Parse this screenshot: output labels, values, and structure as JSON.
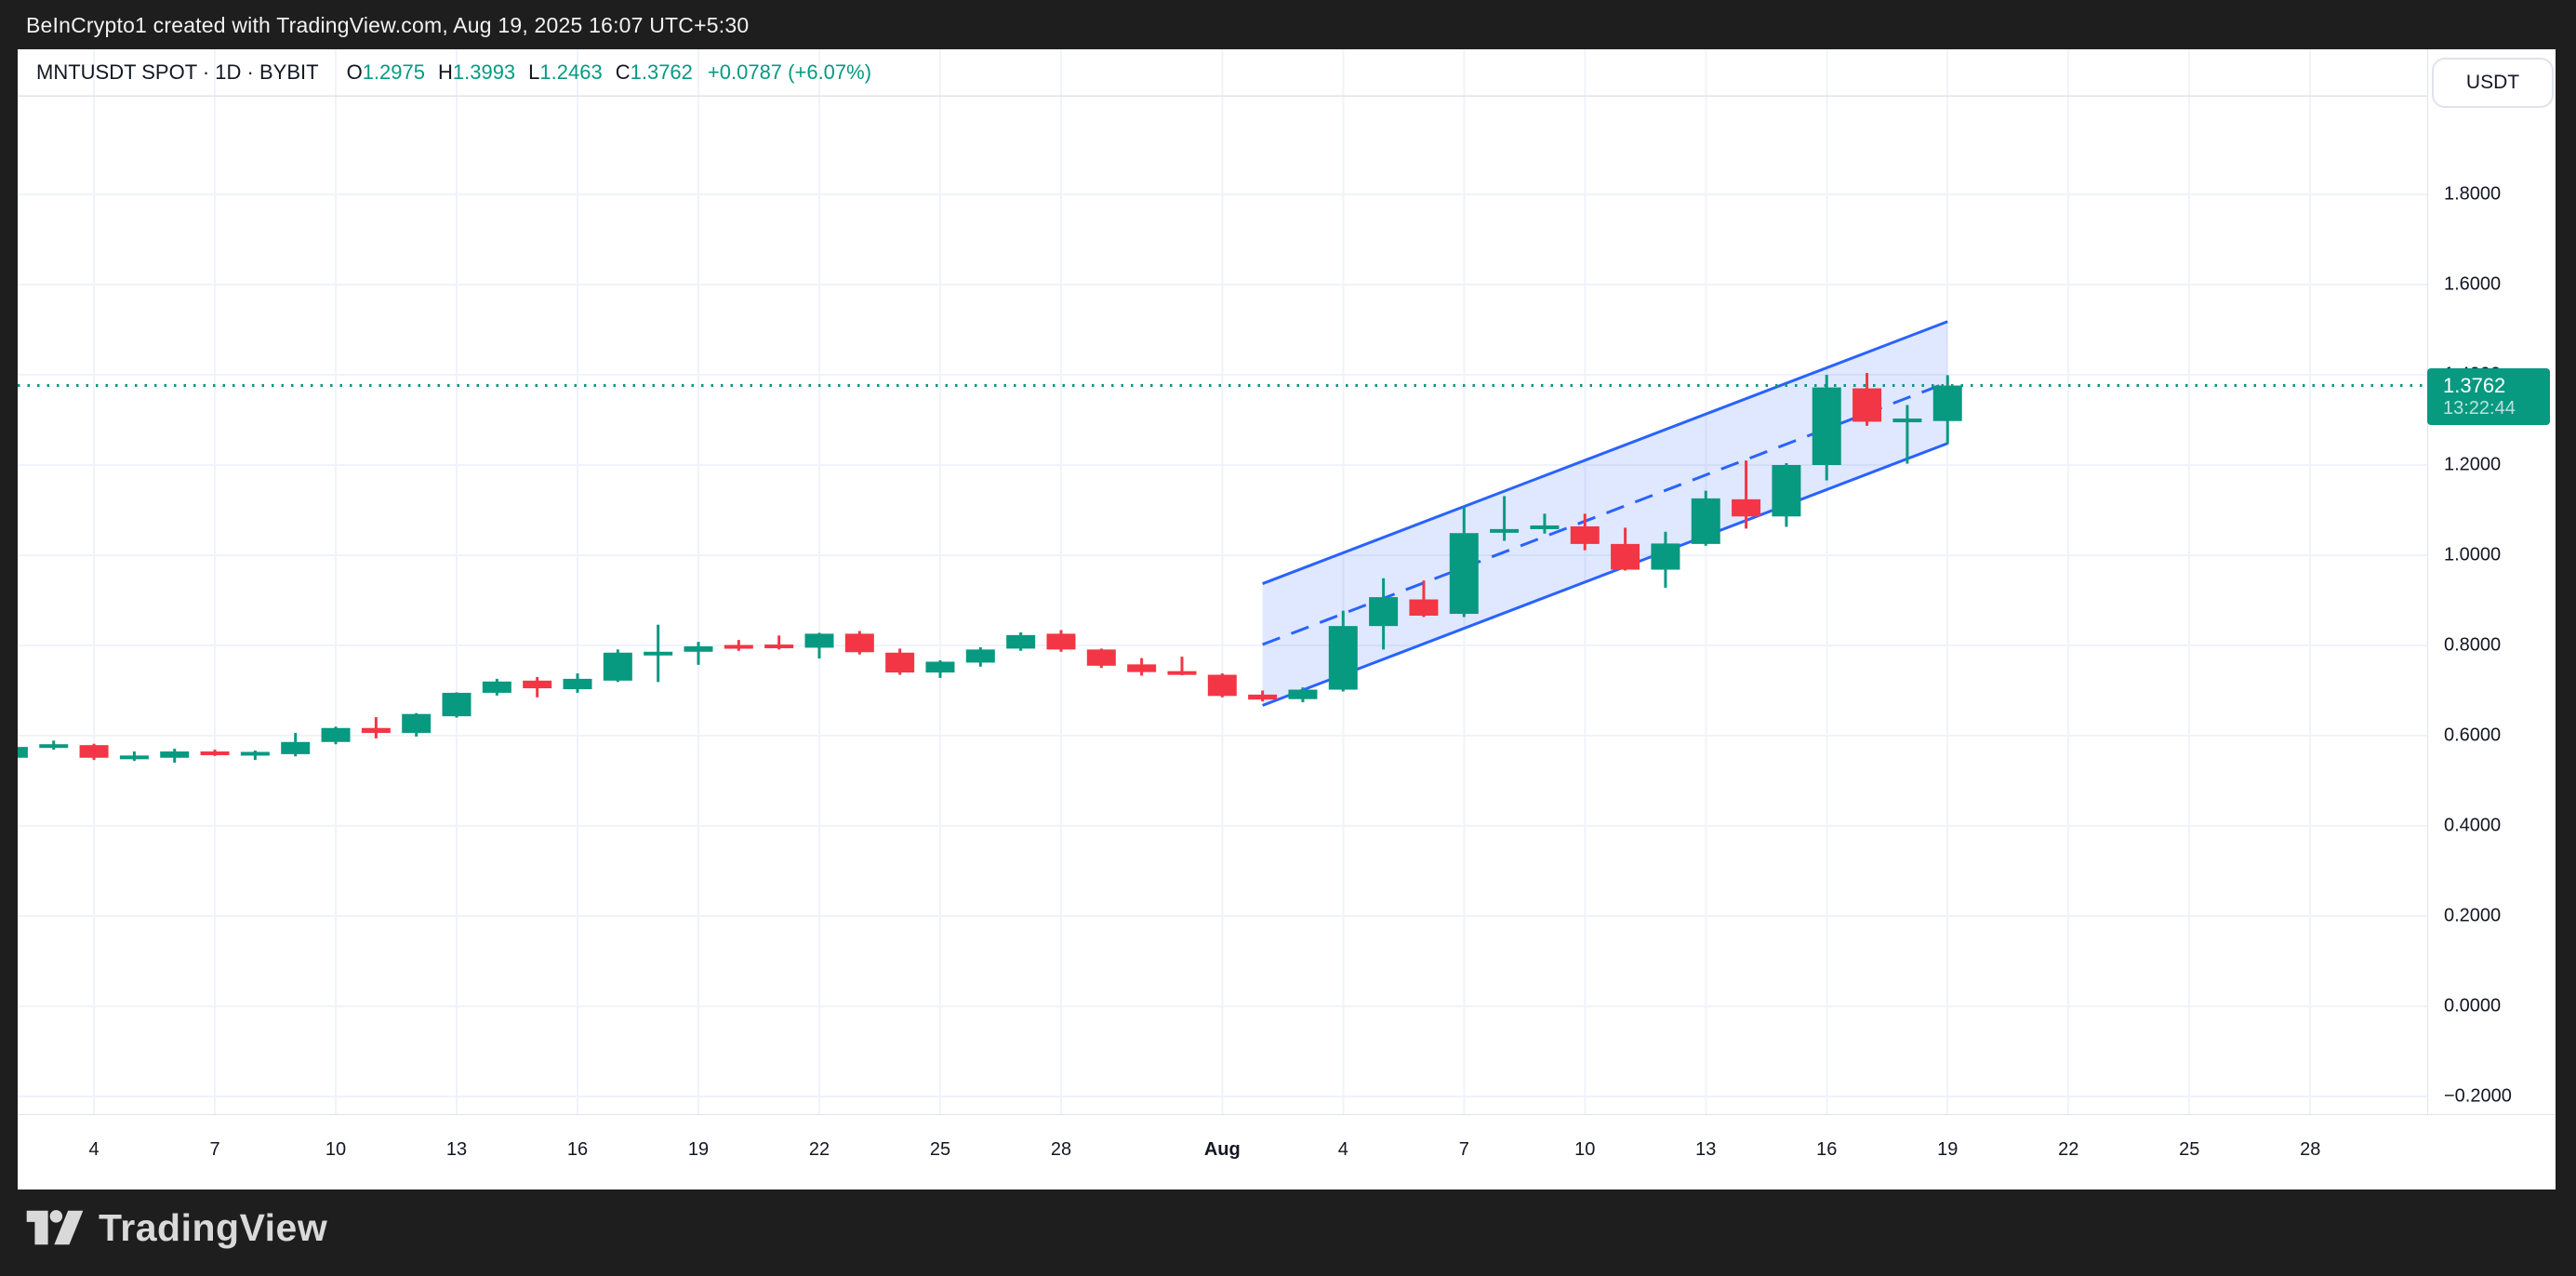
{
  "frame": {
    "attribution": "BeInCrypto1 created with TradingView.com, Aug 19, 2025 16:07 UTC+5:30",
    "logo_text": "TradingView"
  },
  "header": {
    "symbol": "MNTUSDT SPOT · 1D · BYBIT",
    "o_label": "O",
    "o_value": "1.2975",
    "h_label": "H",
    "h_value": "1.3993",
    "l_label": "L",
    "l_value": "1.2463",
    "c_label": "C",
    "c_value": "1.3762",
    "change": "+0.0787 (+6.07%)",
    "currency_button": "USDT"
  },
  "price_label": {
    "price": "1.3762",
    "countdown": "13:22:44"
  },
  "colors": {
    "up": "#089981",
    "down": "#f23645",
    "channel_line": "#2962ff",
    "channel_fill": "rgba(41,98,255,0.15)",
    "grid": "#f0f3fa",
    "axis_text": "#131722",
    "frame_bg": "#1e1e1e",
    "price_line": "#089981",
    "separator": "#e0e3eb"
  },
  "chart_data": {
    "type": "candlestick",
    "title": "MNTUSDT SPOT · 1D · BYBIT",
    "ylim": [
      -0.24,
      2.02
    ],
    "grid": true,
    "price_line_value": 1.3762,
    "y_ticks": [
      {
        "label": "1.8000",
        "value": 1.8
      },
      {
        "label": "1.6000",
        "value": 1.6
      },
      {
        "label": "1.4000",
        "value": 1.4
      },
      {
        "label": "1.2000",
        "value": 1.2
      },
      {
        "label": "1.0000",
        "value": 1.0
      },
      {
        "label": "0.8000",
        "value": 0.8
      },
      {
        "label": "0.6000",
        "value": 0.6
      },
      {
        "label": "0.4000",
        "value": 0.4
      },
      {
        "label": "0.2000",
        "value": 0.2
      },
      {
        "label": "0.0000",
        "value": 0.0
      },
      {
        "label": "−0.2000",
        "value": -0.2
      }
    ],
    "x_ticks": [
      {
        "label": "4",
        "i": 2
      },
      {
        "label": "7",
        "i": 5
      },
      {
        "label": "10",
        "i": 8
      },
      {
        "label": "13",
        "i": 11
      },
      {
        "label": "16",
        "i": 14
      },
      {
        "label": "19",
        "i": 17
      },
      {
        "label": "22",
        "i": 20
      },
      {
        "label": "25",
        "i": 23
      },
      {
        "label": "28",
        "i": 26
      },
      {
        "label": "Aug",
        "i": 30,
        "bold": true
      },
      {
        "label": "4",
        "i": 33
      },
      {
        "label": "7",
        "i": 36
      },
      {
        "label": "10",
        "i": 39
      },
      {
        "label": "13",
        "i": 42
      },
      {
        "label": "16",
        "i": 45
      },
      {
        "label": "19",
        "i": 48
      },
      {
        "label": "22",
        "i": 51
      },
      {
        "label": "25",
        "i": 54
      },
      {
        "label": "28",
        "i": 57
      }
    ],
    "candles": [
      {
        "d": "Jul 2",
        "o": 0.551,
        "h": 0.578,
        "l": 0.548,
        "c": 0.575
      },
      {
        "d": "Jul 3",
        "o": 0.578,
        "h": 0.589,
        "l": 0.569,
        "c": 0.581
      },
      {
        "d": "Jul 4",
        "o": 0.579,
        "h": 0.582,
        "l": 0.546,
        "c": 0.551
      },
      {
        "d": "Jul 5",
        "o": 0.553,
        "h": 0.565,
        "l": 0.544,
        "c": 0.556
      },
      {
        "d": "Jul 6",
        "o": 0.551,
        "h": 0.571,
        "l": 0.54,
        "c": 0.565
      },
      {
        "d": "Jul 7",
        "o": 0.565,
        "h": 0.569,
        "l": 0.555,
        "c": 0.561
      },
      {
        "d": "Jul 8",
        "o": 0.561,
        "h": 0.567,
        "l": 0.546,
        "c": 0.564
      },
      {
        "d": "Jul 9",
        "o": 0.559,
        "h": 0.606,
        "l": 0.554,
        "c": 0.586
      },
      {
        "d": "Jul 10",
        "o": 0.586,
        "h": 0.62,
        "l": 0.581,
        "c": 0.617
      },
      {
        "d": "Jul 11",
        "o": 0.617,
        "h": 0.641,
        "l": 0.594,
        "c": 0.606
      },
      {
        "d": "Jul 12",
        "o": 0.606,
        "h": 0.65,
        "l": 0.598,
        "c": 0.648
      },
      {
        "d": "Jul 13",
        "o": 0.643,
        "h": 0.696,
        "l": 0.64,
        "c": 0.695
      },
      {
        "d": "Jul 14",
        "o": 0.695,
        "h": 0.726,
        "l": 0.689,
        "c": 0.72
      },
      {
        "d": "Jul 15",
        "o": 0.722,
        "h": 0.73,
        "l": 0.685,
        "c": 0.705
      },
      {
        "d": "Jul 16",
        "o": 0.703,
        "h": 0.738,
        "l": 0.695,
        "c": 0.726
      },
      {
        "d": "Jul 17",
        "o": 0.722,
        "h": 0.791,
        "l": 0.719,
        "c": 0.784
      },
      {
        "d": "Jul 18",
        "o": 0.781,
        "h": 0.846,
        "l": 0.719,
        "c": 0.786
      },
      {
        "d": "Jul 19",
        "o": 0.786,
        "h": 0.808,
        "l": 0.757,
        "c": 0.798
      },
      {
        "d": "Jul 20",
        "o": 0.801,
        "h": 0.812,
        "l": 0.788,
        "c": 0.797
      },
      {
        "d": "Jul 21",
        "o": 0.802,
        "h": 0.822,
        "l": 0.791,
        "c": 0.798
      },
      {
        "d": "Jul 22",
        "o": 0.795,
        "h": 0.828,
        "l": 0.771,
        "c": 0.826
      },
      {
        "d": "Jul 23",
        "o": 0.826,
        "h": 0.832,
        "l": 0.78,
        "c": 0.785
      },
      {
        "d": "Jul 24",
        "o": 0.784,
        "h": 0.793,
        "l": 0.735,
        "c": 0.74
      },
      {
        "d": "Jul 25",
        "o": 0.74,
        "h": 0.767,
        "l": 0.728,
        "c": 0.764
      },
      {
        "d": "Jul 26",
        "o": 0.762,
        "h": 0.796,
        "l": 0.753,
        "c": 0.791
      },
      {
        "d": "Jul 27",
        "o": 0.793,
        "h": 0.829,
        "l": 0.788,
        "c": 0.823
      },
      {
        "d": "Jul 28",
        "o": 0.826,
        "h": 0.834,
        "l": 0.786,
        "c": 0.791
      },
      {
        "d": "Jul 29",
        "o": 0.791,
        "h": 0.793,
        "l": 0.75,
        "c": 0.755
      },
      {
        "d": "Jul 30",
        "o": 0.758,
        "h": 0.772,
        "l": 0.733,
        "c": 0.741
      },
      {
        "d": "Jul 31",
        "o": 0.743,
        "h": 0.775,
        "l": 0.734,
        "c": 0.735
      },
      {
        "d": "Aug 1",
        "o": 0.735,
        "h": 0.738,
        "l": 0.685,
        "c": 0.688
      },
      {
        "d": "Aug 2",
        "o": 0.691,
        "h": 0.7,
        "l": 0.676,
        "c": 0.68
      },
      {
        "d": "Aug 3",
        "o": 0.681,
        "h": 0.707,
        "l": 0.674,
        "c": 0.702
      },
      {
        "d": "Aug 4",
        "o": 0.702,
        "h": 0.877,
        "l": 0.698,
        "c": 0.843
      },
      {
        "d": "Aug 5",
        "o": 0.843,
        "h": 0.949,
        "l": 0.791,
        "c": 0.907
      },
      {
        "d": "Aug 6",
        "o": 0.902,
        "h": 0.944,
        "l": 0.863,
        "c": 0.866
      },
      {
        "d": "Aug 7",
        "o": 0.87,
        "h": 1.107,
        "l": 0.863,
        "c": 1.049
      },
      {
        "d": "Aug 8",
        "o": 1.051,
        "h": 1.131,
        "l": 1.032,
        "c": 1.058
      },
      {
        "d": "Aug 9",
        "o": 1.058,
        "h": 1.092,
        "l": 1.048,
        "c": 1.066
      },
      {
        "d": "Aug 10",
        "o": 1.064,
        "h": 1.092,
        "l": 1.011,
        "c": 1.025
      },
      {
        "d": "Aug 11",
        "o": 1.025,
        "h": 1.061,
        "l": 0.966,
        "c": 0.968
      },
      {
        "d": "Aug 12",
        "o": 0.968,
        "h": 1.052,
        "l": 0.928,
        "c": 1.026
      },
      {
        "d": "Aug 13",
        "o": 1.025,
        "h": 1.143,
        "l": 1.021,
        "c": 1.126
      },
      {
        "d": "Aug 14",
        "o": 1.124,
        "h": 1.21,
        "l": 1.059,
        "c": 1.086
      },
      {
        "d": "Aug 15",
        "o": 1.086,
        "h": 1.204,
        "l": 1.063,
        "c": 1.2
      },
      {
        "d": "Aug 16",
        "o": 1.2,
        "h": 1.4,
        "l": 1.166,
        "c": 1.372
      },
      {
        "d": "Aug 17",
        "o": 1.37,
        "h": 1.404,
        "l": 1.287,
        "c": 1.296
      },
      {
        "d": "Aug 18",
        "o": 1.297,
        "h": 1.333,
        "l": 1.203,
        "c": 1.303
      },
      {
        "d": "Aug 19",
        "o": 1.2975,
        "h": 1.3993,
        "l": 1.2463,
        "c": 1.3762
      }
    ],
    "channel": {
      "start_date": "Aug 2",
      "end_date": "Aug 19",
      "start_index": 31,
      "end_index": 48,
      "upper_start": 0.937,
      "upper_end": 1.518,
      "lower_start": 0.667,
      "lower_end": 1.248
    }
  }
}
